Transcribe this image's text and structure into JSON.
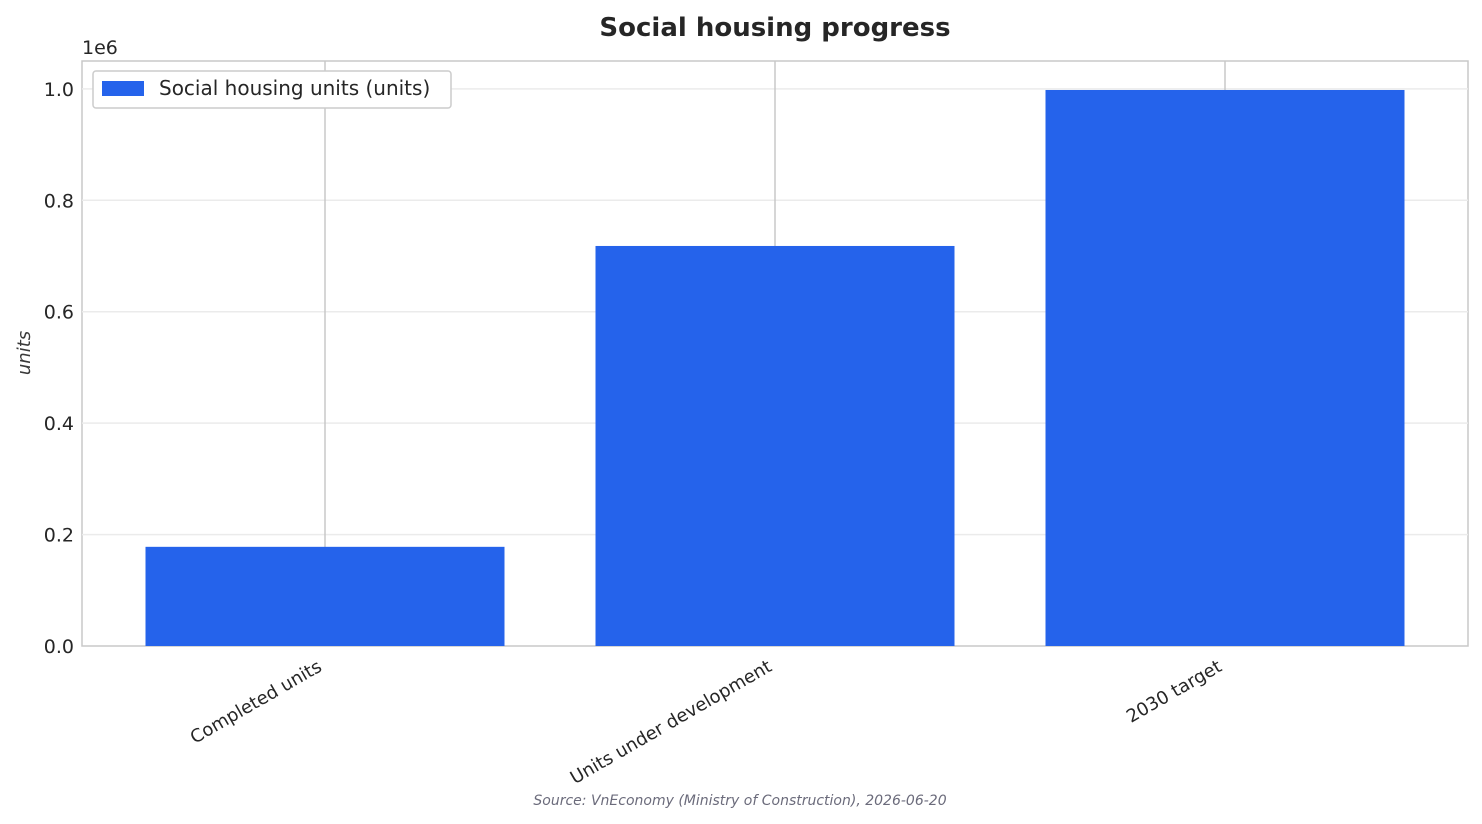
{
  "chart_data": {
    "type": "bar",
    "title": "Social housing progress",
    "categories": [
      "Completed units",
      "Units under development",
      "2030 target"
    ],
    "series": [
      {
        "name": "Social housing units (units)",
        "values": [
          178000,
          718000,
          998000
        ]
      }
    ],
    "xlabel": "",
    "ylabel": "units",
    "y_offset_label": "1e6",
    "yticks": [
      "0.0",
      "0.2",
      "0.4",
      "0.6",
      "0.8",
      "1.0"
    ],
    "ylim": [
      0,
      1050000
    ],
    "grid": true,
    "legend": "top-left",
    "source": "Source: VnEconomy (Ministry of Construction), 2026-06-20",
    "colors": {
      "bar": "#2563eb",
      "grid": "#ebebeb",
      "axis": "#c8c8c8"
    }
  }
}
